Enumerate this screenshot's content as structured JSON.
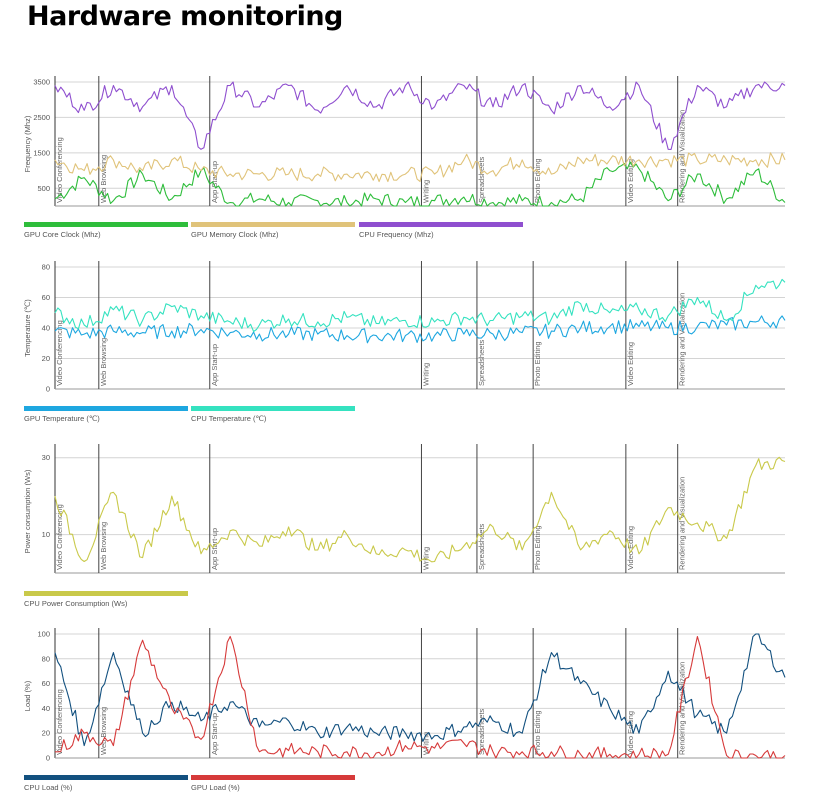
{
  "page": {
    "title": "Hardware monitoring"
  },
  "chart_data": [
    {
      "type": "line",
      "ylabel": "Frequency (Mhz)",
      "ylim": [
        0,
        3500
      ],
      "yticks": [
        500,
        1500,
        2500,
        3500
      ],
      "segments": [
        "Video Conferencing",
        "Web Browsing",
        "App Start-up",
        "Writing",
        "Spreadsheets",
        "Photo Editing",
        "Video Editing",
        "Rendering and Visualization"
      ],
      "x": [
        0,
        4,
        8,
        12,
        16,
        20,
        24,
        28,
        32,
        36,
        40,
        44,
        48,
        52,
        56,
        60,
        64,
        68,
        72,
        76,
        80,
        84,
        88,
        92,
        96,
        100
      ],
      "series": [
        {
          "name": "GPU Core Clock (Mhz)",
          "color": "#2ebd3b",
          "values": [
            200,
            800,
            150,
            900,
            200,
            1000,
            100,
            200,
            100,
            150,
            100,
            200,
            100,
            150,
            250,
            100,
            150,
            100,
            200,
            1000,
            1050,
            150,
            900,
            200,
            1000,
            100
          ]
        },
        {
          "name": "GPU Memory Clock (Mhz)",
          "color": "#e0c37a",
          "values": [
            1300,
            1000,
            1300,
            1000,
            1300,
            1000,
            900,
            900,
            900,
            900,
            900,
            900,
            900,
            900,
            1300,
            1000,
            1300,
            900,
            1300,
            1300,
            1300,
            1300,
            1300,
            1300,
            1300,
            1300
          ]
        },
        {
          "name": "CPU Frequency (Mhz)",
          "color": "#8f4fcf",
          "values": [
            3400,
            2700,
            3400,
            2800,
            3400,
            1600,
            3400,
            2800,
            3400,
            2700,
            3400,
            2800,
            3400,
            2800,
            3400,
            2800,
            3400,
            2700,
            3400,
            2800,
            3400,
            1600,
            3400,
            2800,
            3400,
            3400
          ]
        }
      ]
    },
    {
      "type": "line",
      "ylabel": "Temperature (℃)",
      "ylim": [
        0,
        80
      ],
      "yticks": [
        0,
        20,
        40,
        60,
        80
      ],
      "segments": [
        "Video Conferencing",
        "Web Browsing",
        "App Start-up",
        "Writing",
        "Spreadsheets",
        "Photo Editing",
        "Video Editing",
        "Rendering and Visualization"
      ],
      "x": [
        0,
        4,
        8,
        12,
        16,
        20,
        24,
        28,
        32,
        36,
        40,
        44,
        48,
        52,
        56,
        60,
        64,
        68,
        72,
        76,
        80,
        84,
        88,
        92,
        96,
        100
      ],
      "series": [
        {
          "name": "GPU Temperature (℃)",
          "color": "#1ea7e0",
          "values": [
            38,
            36,
            38,
            37,
            38,
            39,
            37,
            36,
            36,
            36,
            35,
            35,
            35,
            35,
            36,
            36,
            37,
            38,
            40,
            41,
            41,
            40,
            41,
            42,
            44,
            45
          ]
        },
        {
          "name": "CPU Temperature (℃)",
          "color": "#35e2c0",
          "values": [
            50,
            42,
            52,
            45,
            54,
            48,
            44,
            42,
            46,
            44,
            47,
            43,
            45,
            44,
            47,
            45,
            48,
            46,
            56,
            50,
            52,
            48,
            60,
            45,
            68,
            70
          ]
        }
      ]
    },
    {
      "type": "line",
      "ylabel": "Power consumption (Ws)",
      "ylim": [
        0,
        32
      ],
      "yticks": [
        10,
        30
      ],
      "segments": [
        "Video Conferencing",
        "Web Browsing",
        "App Start-up",
        "Writing",
        "Spreadsheets",
        "Photo Editing",
        "Video Editing",
        "Rendering and Visualization"
      ],
      "x": [
        0,
        4,
        8,
        12,
        16,
        20,
        24,
        28,
        32,
        36,
        40,
        44,
        48,
        52,
        56,
        60,
        64,
        68,
        72,
        76,
        80,
        84,
        88,
        92,
        96,
        100
      ],
      "series": [
        {
          "name": "CPU Power Consumption (Ws)",
          "color": "#c9c94a",
          "values": [
            20,
            3,
            21,
            4,
            20,
            5,
            11,
            7,
            12,
            6,
            10,
            5,
            6,
            3,
            7,
            12,
            6,
            21,
            6,
            11,
            5,
            17,
            13,
            9,
            28,
            29
          ]
        }
      ]
    },
    {
      "type": "line",
      "ylabel": "Load (%)",
      "ylim": [
        0,
        100
      ],
      "yticks": [
        0,
        20,
        40,
        60,
        80,
        100
      ],
      "segments": [
        "Video Conferencing",
        "Web Browsing",
        "App Start-up",
        "Writing",
        "Spreadsheets",
        "Photo Editing",
        "Video Editing",
        "Rendering and Visualization"
      ],
      "x": [
        0,
        4,
        8,
        12,
        16,
        20,
        24,
        28,
        32,
        36,
        40,
        44,
        48,
        52,
        56,
        60,
        64,
        68,
        72,
        76,
        80,
        84,
        88,
        92,
        96,
        100
      ],
      "series": [
        {
          "name": "CPU Load (%)",
          "color": "#12507f",
          "values": [
            85,
            10,
            85,
            20,
            45,
            30,
            45,
            25,
            30,
            20,
            25,
            20,
            20,
            18,
            25,
            30,
            20,
            85,
            60,
            40,
            20,
            70,
            35,
            20,
            100,
            65
          ]
        },
        {
          "name": "GPU Load (%)",
          "color": "#d63a3a",
          "values": [
            5,
            20,
            10,
            95,
            40,
            15,
            98,
            5,
            6,
            5,
            5,
            4,
            10,
            8,
            12,
            5,
            5,
            5,
            3,
            3,
            3,
            3,
            98,
            2,
            2,
            2
          ]
        }
      ]
    }
  ]
}
